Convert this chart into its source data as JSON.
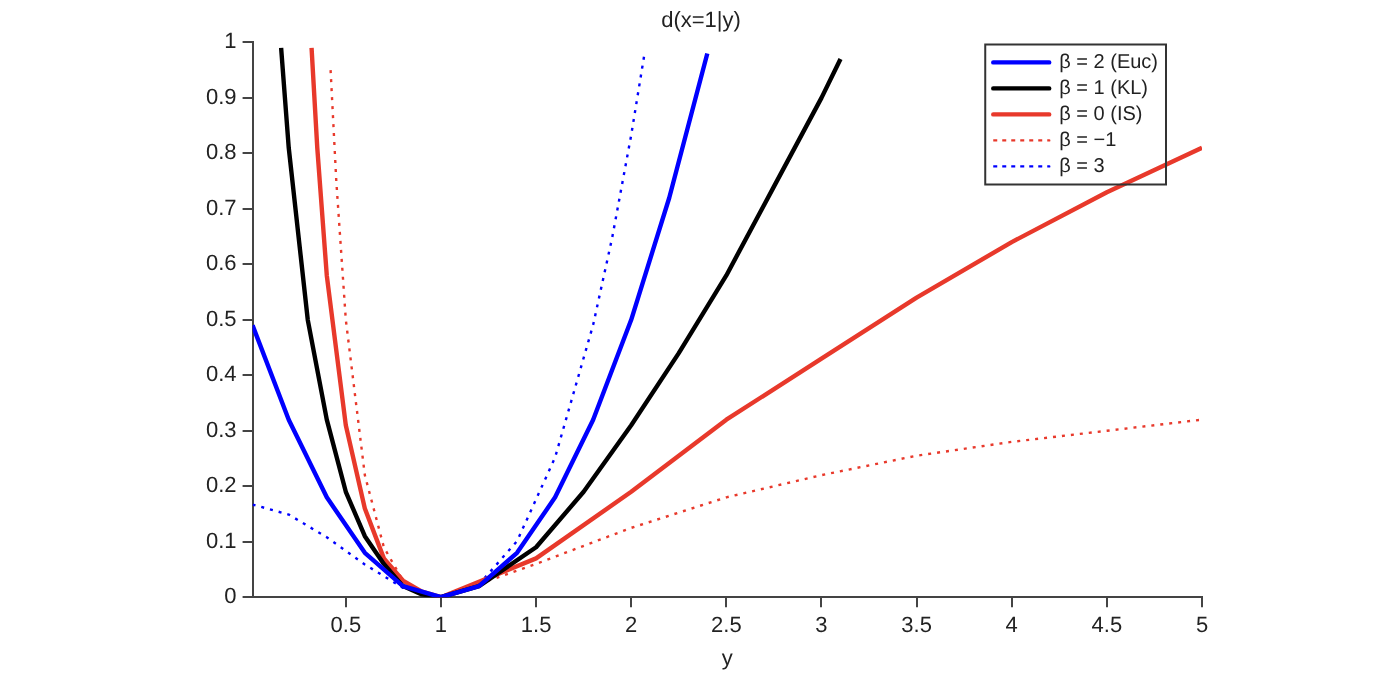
{
  "chart_data": {
    "type": "line",
    "title": "d(x=1|y)",
    "xlabel": "y",
    "xlim": [
      0.01,
      5
    ],
    "xticks": [
      0.5,
      1,
      1.5,
      2,
      2.5,
      3,
      3.5,
      4,
      4.5,
      5
    ],
    "ylim": [
      0,
      1
    ],
    "yticks": [
      0,
      0.1,
      0.2,
      0.3,
      0.4,
      0.5,
      0.6,
      0.7,
      0.8,
      0.9,
      1
    ],
    "grid": false,
    "legend": "top right",
    "marker": "none",
    "series": [
      {
        "name": "β = 2 (Euc)",
        "color": "#0000ff",
        "line_style": "solid",
        "x": [
          0.01,
          0.2,
          0.4,
          0.6,
          0.8,
          1,
          1.2,
          1.4,
          1.6,
          1.8,
          2.0,
          2.2,
          2.4
        ],
        "values": [
          0.49,
          0.32,
          0.18,
          0.08,
          0.02,
          0,
          0.02,
          0.08,
          0.18,
          0.32,
          0.5,
          0.72,
          0.98
        ]
      },
      {
        "name": "β = 1 (KL)",
        "color": "#000000",
        "line_style": "solid",
        "x": [
          0.16,
          0.2,
          0.3,
          0.4,
          0.5,
          0.6,
          0.7,
          0.8,
          0.9,
          1,
          1.2,
          1.5,
          1.75,
          2,
          2.25,
          2.5,
          2.75,
          3,
          3.1
        ],
        "values": [
          0.99,
          0.81,
          0.5,
          0.32,
          0.19,
          0.11,
          0.06,
          0.02,
          0.005,
          0,
          0.02,
          0.09,
          0.19,
          0.31,
          0.44,
          0.58,
          0.74,
          0.9,
          0.97
        ]
      },
      {
        "name": "β = 0 (IS)",
        "color": "#e8392b",
        "line_style": "solid",
        "x": [
          0.32,
          0.35,
          0.4,
          0.5,
          0.6,
          0.7,
          0.8,
          0.9,
          1,
          1.5,
          2,
          2.5,
          3,
          3.5,
          4,
          4.5,
          5
        ],
        "values": [
          0.99,
          0.81,
          0.58,
          0.31,
          0.16,
          0.07,
          0.03,
          0.01,
          0,
          0.07,
          0.19,
          0.32,
          0.43,
          0.54,
          0.64,
          0.73,
          0.81
        ]
      },
      {
        "name": "β = −1",
        "color": "#e8392b",
        "line_style": "dotted",
        "x": [
          0.42,
          0.45,
          0.5,
          0.6,
          0.7,
          0.8,
          0.9,
          1,
          1.5,
          2,
          2.5,
          3,
          3.5,
          4,
          4.5,
          5
        ],
        "values": [
          0.95,
          0.75,
          0.5,
          0.22,
          0.09,
          0.03,
          0.006,
          0,
          0.06,
          0.125,
          0.18,
          0.22,
          0.255,
          0.28,
          0.3,
          0.32
        ]
      },
      {
        "name": "β = 3",
        "color": "#0000ff",
        "line_style": "dotted",
        "x": [
          0.01,
          0.2,
          0.4,
          0.6,
          0.8,
          1,
          1.2,
          1.4,
          1.6,
          1.8,
          1.9,
          2.0,
          2.07
        ],
        "values": [
          0.167,
          0.149,
          0.108,
          0.059,
          0.017,
          0,
          0.023,
          0.101,
          0.252,
          0.491,
          0.648,
          0.833,
          0.98
        ]
      }
    ]
  }
}
